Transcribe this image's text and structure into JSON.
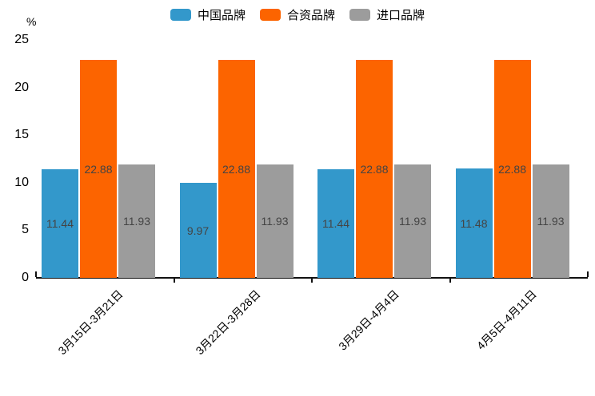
{
  "chart_data": {
    "type": "bar",
    "title": "",
    "ylabel": "%",
    "xlabel": "",
    "categories": [
      "3月15日-3月21日",
      "3月22日-3月28日",
      "3月29日-4月4日",
      "4月5日-4月11日"
    ],
    "series": [
      {
        "name": "中国品牌",
        "color": "#3398CB",
        "values": [
          11.44,
          9.97,
          11.44,
          11.48
        ]
      },
      {
        "name": "合资品牌",
        "color": "#FC6400",
        "values": [
          22.88,
          22.88,
          22.88,
          22.88
        ]
      },
      {
        "name": "进口品牌",
        "color": "#9C9C9C",
        "values": [
          11.93,
          11.93,
          11.93,
          11.93
        ]
      }
    ],
    "y_ticks": [
      0,
      5,
      10,
      15,
      20,
      25
    ],
    "ylim": [
      0,
      25
    ],
    "grid": false,
    "legend_position": "top",
    "value_labels": true,
    "value_label_color": "#444444"
  }
}
